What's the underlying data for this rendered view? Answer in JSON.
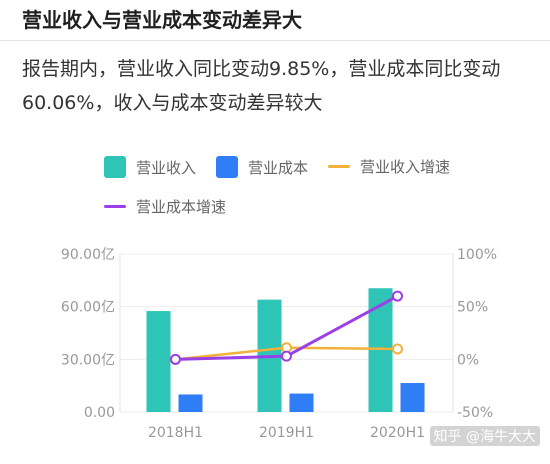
{
  "header": {
    "title": "营业收入与营业成本变动差异大"
  },
  "summary": {
    "text": "报告期内，营业收入同比变动9.85%，营业成本同比变动60.06%，收入与成本变动差异较大"
  },
  "watermark": "知乎 @海牛大大",
  "colors": {
    "revenue": "#2ec4b6",
    "cost": "#2f7ef5",
    "revenue_growth": "#f2b23a",
    "cost_growth": "#9b3fe6"
  },
  "chart_data": {
    "type": "bar",
    "categories": [
      "2018H1",
      "2019H1",
      "2020H1"
    ],
    "series": [
      {
        "name": "营业收入",
        "kind": "bar",
        "axis": "left",
        "values": [
          57.5,
          64.0,
          70.5
        ]
      },
      {
        "name": "营业成本",
        "kind": "bar",
        "axis": "left",
        "values": [
          10.0,
          10.5,
          16.5
        ]
      },
      {
        "name": "营业收入增速",
        "kind": "line",
        "axis": "right",
        "values": [
          0,
          11,
          9.85
        ]
      },
      {
        "name": "营业成本增速",
        "kind": "line",
        "axis": "right",
        "values": [
          0,
          3,
          60.06
        ]
      }
    ],
    "y_left": {
      "ylim": [
        0,
        90
      ],
      "ticks": [
        "0.00",
        "30.00亿",
        "60.00亿",
        "90.00亿"
      ]
    },
    "y_right": {
      "ylim": [
        -50,
        100
      ],
      "ticks": [
        "-50%",
        "0%",
        "50%",
        "100%"
      ]
    },
    "legend_position": "top"
  }
}
